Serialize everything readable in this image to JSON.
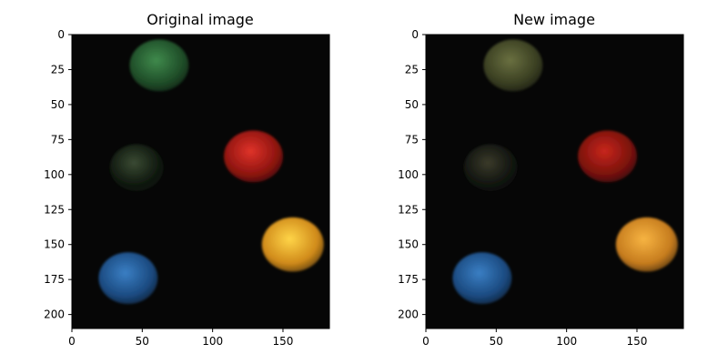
{
  "panels": [
    {
      "title": "Original image",
      "variant": "original",
      "x_ticks": [
        "0",
        "50",
        "100",
        "150"
      ],
      "y_ticks": [
        "0",
        "25",
        "50",
        "75",
        "100",
        "125",
        "150",
        "175",
        "200"
      ]
    },
    {
      "title": "New image",
      "variant": "new",
      "x_ticks": [
        "0",
        "50",
        "100",
        "150"
      ],
      "y_ticks": [
        "0",
        "25",
        "50",
        "75",
        "100",
        "125",
        "150",
        "175",
        "200"
      ]
    }
  ],
  "image": {
    "width_units": 183,
    "height_units": 210,
    "balls": [
      {
        "name": "green-ball",
        "cx": 62,
        "cy": 22,
        "r": 21,
        "colors": {
          "original": [
            "#3f8a4c",
            "#1f4d28"
          ],
          "new": [
            "#6a7040",
            "#3a3f22"
          ]
        }
      },
      {
        "name": "red-ball",
        "cx": 129,
        "cy": 87,
        "r": 21,
        "colors": {
          "original": [
            "#e0332a",
            "#8e140f"
          ],
          "new": [
            "#c8261c",
            "#7a120c"
          ]
        }
      },
      {
        "name": "dark-green-ball",
        "cx": 46,
        "cy": 95,
        "r": 19,
        "colors": {
          "original": [
            "#3a4a33",
            "#111a10"
          ],
          "new": [
            "#3a3a2a",
            "#121510"
          ]
        }
      },
      {
        "name": "yellow-ball",
        "cx": 157,
        "cy": 150,
        "r": 22,
        "colors": {
          "original": [
            "#ffd548",
            "#d08a1a"
          ],
          "new": [
            "#f7b442",
            "#c67c1e"
          ]
        }
      },
      {
        "name": "blue-ball",
        "cx": 40,
        "cy": 174,
        "r": 21,
        "colors": {
          "original": [
            "#3a7fc4",
            "#1b4a80"
          ],
          "new": [
            "#3a7fc4",
            "#1b4a80"
          ]
        }
      }
    ]
  }
}
